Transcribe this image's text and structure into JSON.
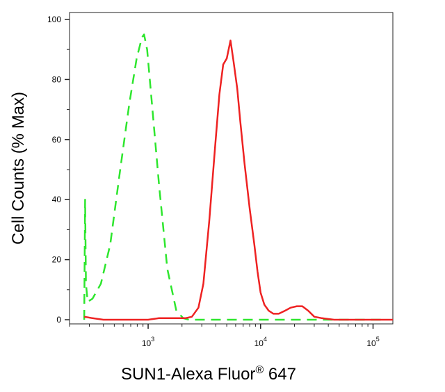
{
  "chart_data": {
    "type": "line",
    "title": "",
    "xlabel": "SUN1-Alexa Fluor",
    "xlabel_sup": "®",
    "xlabel_suffix": " 647",
    "ylabel": "Cell Counts (% Max)",
    "x_scale": "log",
    "xlim": [
      200,
      150000
    ],
    "ylim": [
      0,
      100
    ],
    "x_ticks": [
      {
        "base": "10",
        "exp": "3",
        "value": 1000
      },
      {
        "base": "10",
        "exp": "4",
        "value": 10000
      },
      {
        "base": "10",
        "exp": "5",
        "value": 100000
      }
    ],
    "y_ticks": [
      0,
      20,
      40,
      60,
      80,
      100
    ],
    "grid": false,
    "legend": "none",
    "series": [
      {
        "color": "#2ee62e",
        "style": "dashed",
        "x": [
          270,
          275,
          280,
          290,
          320,
          380,
          460,
          560,
          680,
          790,
          880,
          920,
          980,
          1080,
          1250,
          1480,
          1780,
          2050,
          2300,
          2800,
          4000,
          8000,
          20000,
          50000,
          120000
        ],
        "y": [
          0,
          40,
          12,
          6,
          7,
          12,
          25,
          49,
          72,
          87,
          94,
          95,
          90,
          72,
          45,
          17,
          3,
          0.5,
          0,
          0,
          0,
          0,
          0,
          0,
          0
        ]
      },
      {
        "color": "#ee2222",
        "style": "solid",
        "x": [
          270,
          320,
          400,
          500,
          640,
          820,
          1000,
          1250,
          1600,
          1900,
          2150,
          2450,
          2800,
          3100,
          3500,
          3950,
          4300,
          4650,
          5000,
          5400,
          5750,
          6200,
          6600,
          7200,
          8000,
          8800,
          9400,
          10000,
          10800,
          11800,
          13000,
          14500,
          16500,
          18500,
          21000,
          23500,
          26500,
          30000,
          35000,
          45000,
          60000,
          80000,
          110000,
          150000
        ],
        "y": [
          1,
          0.5,
          0,
          0,
          0,
          0,
          0,
          0.5,
          0.5,
          0.5,
          0.5,
          1,
          4,
          12,
          33,
          58,
          75,
          85,
          87,
          93,
          86,
          77,
          66,
          52,
          37,
          25,
          16,
          9,
          5,
          3,
          2,
          2,
          3,
          4,
          4.5,
          4.5,
          3,
          1,
          0.5,
          0,
          0,
          0,
          0,
          0
        ]
      }
    ]
  }
}
